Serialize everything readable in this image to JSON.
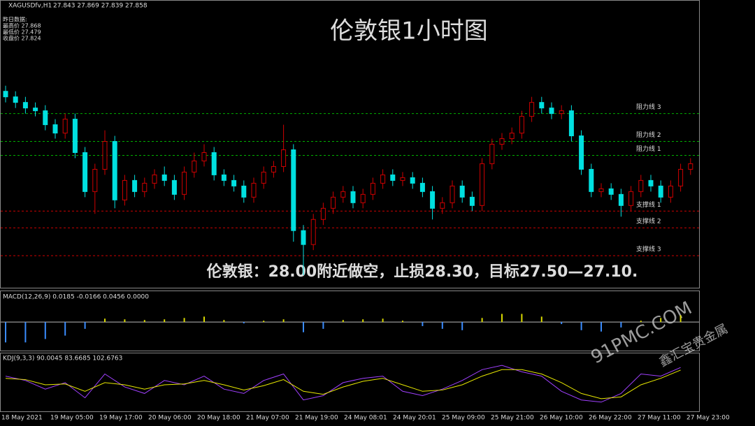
{
  "header": {
    "symbol": "XAGUSDfv,H1",
    "ohlc": "27.843 27.869 27.839 27.858"
  },
  "info": [
    "昨日数据:",
    "最高价 27.868",
    "最低价 27.479",
    "收盘价 27.824"
  ],
  "watermark": {
    "site": "91PMC.COM",
    "brand": "鑫汇宝贵金属"
  },
  "chart_data": [
    {
      "type": "candlestick",
      "title": "伦敦银1小时图",
      "annotation": "伦敦银：28.00附近做空，止损28.30，目标27.50—27.10.",
      "ylim": [
        27.42,
        28.41
      ],
      "up_color": "#d00000",
      "down_color": "#00e0e0",
      "x_labels": [
        "18 May 2021",
        "19 May 05:00",
        "19 May 17:00",
        "20 May 06:00",
        "20 May 18:00",
        "21 May 07:00",
        "21 May 19:00",
        "24 May 08:01",
        "24 May 20:01",
        "25 May 09:00",
        "25 May 21:00",
        "26 May 10:00",
        "26 May 22:00",
        "27 May 11:00",
        "27 May 23:00"
      ],
      "open": [
        28.12,
        28.1,
        28.08,
        28.06,
        28.05,
        28.0,
        27.97,
        28.02,
        27.9,
        27.76,
        27.84,
        27.94,
        27.73,
        27.8,
        27.76,
        27.79,
        27.82,
        27.8,
        27.75,
        27.83,
        27.87,
        27.9,
        27.82,
        27.8,
        27.78,
        27.74,
        27.79,
        27.83,
        27.85,
        27.91,
        27.62,
        27.57,
        27.66,
        27.7,
        27.74,
        27.76,
        27.72,
        27.75,
        27.79,
        27.82,
        27.8,
        27.81,
        27.79,
        27.76,
        27.7,
        27.72,
        27.78,
        27.74,
        27.71,
        27.86,
        27.93,
        27.95,
        27.97,
        28.03,
        28.08,
        28.06,
        28.04,
        28.05,
        27.96,
        27.84,
        27.76,
        27.77,
        27.75,
        27.71,
        27.76,
        27.8,
        27.78,
        27.74,
        27.78,
        27.84
      ],
      "high": [
        28.14,
        28.12,
        28.1,
        28.08,
        28.07,
        28.02,
        28.04,
        28.04,
        27.92,
        27.86,
        27.98,
        27.96,
        27.82,
        27.82,
        27.81,
        27.84,
        27.85,
        27.82,
        27.85,
        27.9,
        27.93,
        27.92,
        27.84,
        27.82,
        27.8,
        27.81,
        27.85,
        27.87,
        28.0,
        27.93,
        27.64,
        27.68,
        27.72,
        27.76,
        27.78,
        27.78,
        27.77,
        27.81,
        27.84,
        27.84,
        27.83,
        27.83,
        27.81,
        27.78,
        27.74,
        27.8,
        27.8,
        27.76,
        27.88,
        27.95,
        27.97,
        27.99,
        28.05,
        28.1,
        28.1,
        28.08,
        28.07,
        28.07,
        27.98,
        27.86,
        27.79,
        27.79,
        27.77,
        27.78,
        27.82,
        27.82,
        27.8,
        27.8,
        27.86,
        27.88
      ],
      "low": [
        28.08,
        28.06,
        28.04,
        28.03,
        27.98,
        27.95,
        27.95,
        27.88,
        27.74,
        27.68,
        27.82,
        27.7,
        27.71,
        27.74,
        27.74,
        27.77,
        27.78,
        27.73,
        27.73,
        27.81,
        27.85,
        27.8,
        27.78,
        27.76,
        27.72,
        27.72,
        27.77,
        27.81,
        27.83,
        27.58,
        27.46,
        27.55,
        27.64,
        27.68,
        27.72,
        27.7,
        27.7,
        27.73,
        27.77,
        27.78,
        27.78,
        27.77,
        27.74,
        27.66,
        27.68,
        27.7,
        27.72,
        27.69,
        27.69,
        27.84,
        27.91,
        27.93,
        27.95,
        28.01,
        28.04,
        28.02,
        28.02,
        27.94,
        27.82,
        27.74,
        27.74,
        27.73,
        27.67,
        27.69,
        27.74,
        27.76,
        27.72,
        27.72,
        27.76,
        27.82
      ],
      "close": [
        28.1,
        28.08,
        28.06,
        28.05,
        28.0,
        27.97,
        28.02,
        27.9,
        27.76,
        27.84,
        27.94,
        27.73,
        27.8,
        27.76,
        27.79,
        27.82,
        27.8,
        27.75,
        27.83,
        27.87,
        27.9,
        27.82,
        27.8,
        27.78,
        27.74,
        27.79,
        27.83,
        27.85,
        27.91,
        27.62,
        27.57,
        27.66,
        27.7,
        27.74,
        27.76,
        27.72,
        27.75,
        27.79,
        27.82,
        27.8,
        27.81,
        27.79,
        27.76,
        27.7,
        27.72,
        27.78,
        27.74,
        27.71,
        27.86,
        27.93,
        27.95,
        27.97,
        28.03,
        28.08,
        28.06,
        28.04,
        28.05,
        27.96,
        27.84,
        27.76,
        27.77,
        27.75,
        27.71,
        27.76,
        27.8,
        27.78,
        27.74,
        27.78,
        27.84,
        27.86
      ],
      "levels": [
        {
          "label": "阻力线 3",
          "value": 28.04,
          "color": "#00b000"
        },
        {
          "label": "阻力线 2",
          "value": 27.94,
          "color": "#00b000"
        },
        {
          "label": "阻力线 1",
          "value": 27.89,
          "color": "#00b000"
        },
        {
          "label": "支撑线 1",
          "value": 27.69,
          "color": "#d00000"
        },
        {
          "label": "支撑线 2",
          "value": 27.63,
          "color": "#d00000"
        },
        {
          "label": "支撑线 3",
          "value": 27.53,
          "color": "#d00000"
        }
      ]
    },
    {
      "type": "histogram",
      "title": "MACD(12,26,9) 0.0185 -0.0166 0.0456 0.0000",
      "ylim": [
        -0.04,
        0.03
      ],
      "pos_color": "#d8d800",
      "neg_color": "#3a8cff",
      "values": [
        -0.03,
        -0.03,
        -0.025,
        -0.02,
        -0.01,
        0.005,
        0.004,
        0.003,
        0.004,
        0.006,
        0.008,
        0.003,
        -0.002,
        0.002,
        0.004,
        -0.015,
        -0.01,
        0.003,
        0.004,
        0.005,
        0.002,
        -0.006,
        -0.01,
        -0.012,
        0.006,
        0.012,
        0.012,
        0.008,
        -0.003,
        -0.012,
        -0.014,
        -0.008,
        0.002,
        0.006,
        0.01
      ]
    },
    {
      "type": "line",
      "title": "KDJ(9,3,3) 90.0045 83.6685 102.6763",
      "ylim": [
        0,
        100
      ],
      "series": [
        {
          "color": "#a040ff",
          "values": [
            70,
            60,
            40,
            55,
            20,
            75,
            45,
            30,
            60,
            50,
            70,
            40,
            30,
            60,
            75,
            15,
            25,
            55,
            65,
            70,
            35,
            25,
            40,
            60,
            85,
            95,
            80,
            70,
            35,
            15,
            10,
            30,
            75,
            70,
            90
          ]
        },
        {
          "color": "#e8e800",
          "values": [
            65,
            62,
            50,
            52,
            35,
            55,
            50,
            40,
            50,
            52,
            60,
            50,
            38,
            48,
            62,
            35,
            28,
            45,
            58,
            65,
            50,
            35,
            38,
            50,
            70,
            85,
            85,
            75,
            55,
            30,
            18,
            22,
            50,
            65,
            84
          ]
        }
      ]
    }
  ]
}
